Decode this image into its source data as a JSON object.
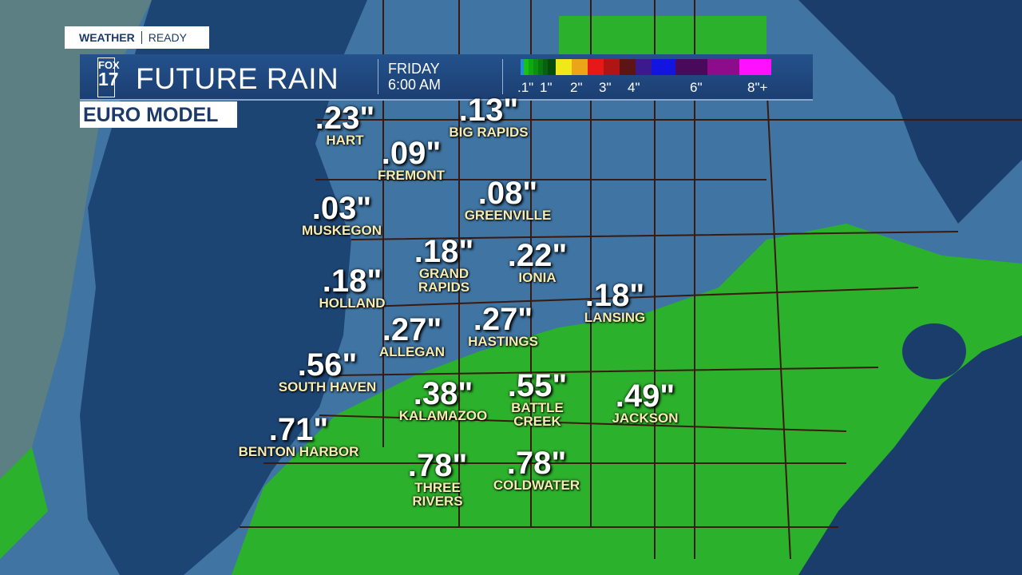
{
  "brand": {
    "left": "WEATHER",
    "right": "READY"
  },
  "banner": {
    "logo_top": "FOX",
    "logo_bottom": "17",
    "title": "FUTURE RAIN",
    "day": "FRIDAY",
    "time": "6:00 AM"
  },
  "legend": {
    "colors": [
      "#1e8fd6",
      "#18c018",
      "#10a810",
      "#0c9010",
      "#0a780e",
      "#086010",
      "#064a0c",
      "#f0e818",
      "#eca418",
      "#e81818",
      "#b01414",
      "#5c1414",
      "#3a1a8c",
      "#1414e0",
      "#4a0a5c",
      "#8c0c8c",
      "#ff10ff"
    ],
    "ticks": [
      ".1\"",
      "1\"",
      "2\"",
      "3\"",
      "4\"",
      "6\"",
      "8\"+"
    ]
  },
  "model_label": "EURO MODEL",
  "cities": [
    {
      "value": ".23\"",
      "name": "HART"
    },
    {
      "value": ".13\"",
      "name": "BIG RAPIDS"
    },
    {
      "value": ".09\"",
      "name": "FREMONT"
    },
    {
      "value": ".08\"",
      "name": "GREENVILLE"
    },
    {
      "value": ".03\"",
      "name": "MUSKEGON"
    },
    {
      "value": ".18\"",
      "name": "GRAND\nRAPIDS"
    },
    {
      "value": ".22\"",
      "name": "IONIA"
    },
    {
      "value": ".18\"",
      "name": "HOLLAND"
    },
    {
      "value": ".18\"",
      "name": "LANSING"
    },
    {
      "value": ".27\"",
      "name": "ALLEGAN"
    },
    {
      "value": ".27\"",
      "name": "HASTINGS"
    },
    {
      "value": ".56\"",
      "name": "SOUTH HAVEN"
    },
    {
      "value": ".38\"",
      "name": "KALAMAZOO"
    },
    {
      "value": ".55\"",
      "name": "BATTLE\nCREEK"
    },
    {
      "value": ".49\"",
      "name": "JACKSON"
    },
    {
      "value": ".71\"",
      "name": "BENTON HARBOR"
    },
    {
      "value": ".78\"",
      "name": "THREE\nRIVERS"
    },
    {
      "value": ".78\"",
      "name": "COLDWATER"
    }
  ]
}
